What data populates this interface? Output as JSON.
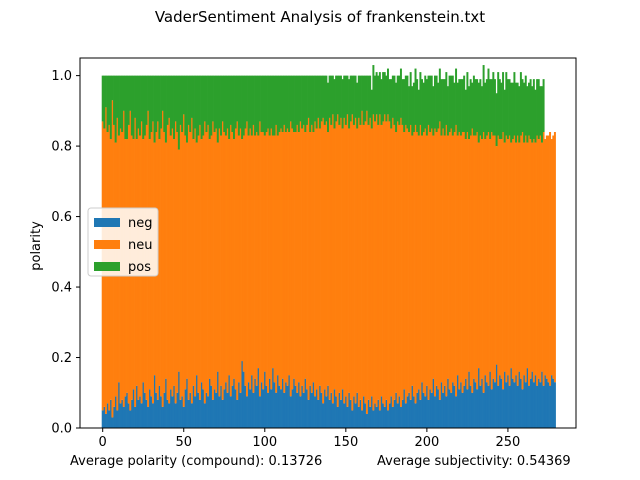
{
  "figure": {
    "title": "VaderSentiment Analysis of frankenstein.txt",
    "footer_left": "Average polarity (compound): 0.13726",
    "footer_right": "Average subjectivity: 0.54369"
  },
  "colors": {
    "neg": "#1f77b4",
    "neu": "#ff7f0e",
    "pos": "#2ca02c"
  },
  "chart_data": {
    "type": "bar",
    "stacked": true,
    "title": "VaderSentiment Analysis of frankenstein.txt",
    "xlabel": "",
    "ylabel": "polarity",
    "xlim": [
      -14,
      292
    ],
    "ylim": [
      0,
      1.05
    ],
    "xticks": [
      0,
      50,
      100,
      150,
      200,
      250
    ],
    "yticks": [
      0.0,
      0.2,
      0.4,
      0.6,
      0.8,
      1.0
    ],
    "legend": {
      "position": "center-left",
      "entries": [
        "neg",
        "neu",
        "pos"
      ]
    },
    "grid": false,
    "n_bars": 279,
    "series": [
      {
        "name": "neg",
        "values": [
          0.05,
          0.06,
          0.04,
          0.07,
          0.05,
          0.08,
          0.03,
          0.06,
          0.09,
          0.05,
          0.13,
          0.07,
          0.08,
          0.06,
          0.09,
          0.1,
          0.07,
          0.05,
          0.08,
          0.11,
          0.06,
          0.12,
          0.08,
          0.09,
          0.07,
          0.13,
          0.1,
          0.08,
          0.06,
          0.11,
          0.09,
          0.07,
          0.15,
          0.1,
          0.08,
          0.12,
          0.09,
          0.06,
          0.1,
          0.14,
          0.08,
          0.07,
          0.11,
          0.09,
          0.12,
          0.07,
          0.1,
          0.16,
          0.08,
          0.09,
          0.06,
          0.11,
          0.14,
          0.08,
          0.1,
          0.07,
          0.12,
          0.09,
          0.15,
          0.1,
          0.08,
          0.13,
          0.11,
          0.07,
          0.1,
          0.09,
          0.14,
          0.12,
          0.08,
          0.11,
          0.1,
          0.16,
          0.09,
          0.12,
          0.08,
          0.11,
          0.13,
          0.1,
          0.15,
          0.09,
          0.12,
          0.14,
          0.11,
          0.08,
          0.13,
          0.1,
          0.19,
          0.16,
          0.12,
          0.09,
          0.13,
          0.11,
          0.15,
          0.1,
          0.14,
          0.12,
          0.17,
          0.09,
          0.13,
          0.11,
          0.16,
          0.12,
          0.1,
          0.14,
          0.11,
          0.17,
          0.13,
          0.1,
          0.15,
          0.12,
          0.11,
          0.14,
          0.1,
          0.13,
          0.12,
          0.15,
          0.09,
          0.11,
          0.14,
          0.12,
          0.1,
          0.13,
          0.09,
          0.12,
          0.1,
          0.14,
          0.11,
          0.08,
          0.12,
          0.1,
          0.13,
          0.09,
          0.11,
          0.08,
          0.12,
          0.1,
          0.07,
          0.11,
          0.09,
          0.12,
          0.08,
          0.1,
          0.07,
          0.11,
          0.09,
          0.06,
          0.1,
          0.08,
          0.11,
          0.07,
          0.09,
          0.06,
          0.1,
          0.08,
          0.05,
          0.09,
          0.07,
          0.1,
          0.06,
          0.08,
          0.05,
          0.09,
          0.07,
          0.04,
          0.08,
          0.06,
          0.09,
          0.05,
          0.07,
          0.06,
          0.08,
          0.05,
          0.09,
          0.07,
          0.06,
          0.08,
          0.05,
          0.07,
          0.09,
          0.06,
          0.08,
          0.1,
          0.07,
          0.09,
          0.06,
          0.08,
          0.11,
          0.07,
          0.09,
          0.1,
          0.08,
          0.12,
          0.09,
          0.07,
          0.1,
          0.11,
          0.08,
          0.13,
          0.1,
          0.09,
          0.12,
          0.08,
          0.11,
          0.1,
          0.14,
          0.09,
          0.12,
          0.11,
          0.08,
          0.13,
          0.1,
          0.12,
          0.09,
          0.14,
          0.11,
          0.1,
          0.13,
          0.12,
          0.09,
          0.15,
          0.11,
          0.13,
          0.1,
          0.12,
          0.14,
          0.11,
          0.16,
          0.12,
          0.1,
          0.14,
          0.13,
          0.11,
          0.17,
          0.12,
          0.14,
          0.1,
          0.15,
          0.13,
          0.12,
          0.16,
          0.11,
          0.14,
          0.13,
          0.18,
          0.12,
          0.15,
          0.14,
          0.11,
          0.16,
          0.13,
          0.15,
          0.12,
          0.17,
          0.14,
          0.13,
          0.15,
          0.12,
          0.16,
          0.14,
          0.11,
          0.15,
          0.13,
          0.17,
          0.12,
          0.14,
          0.16,
          0.13,
          0.15,
          0.12,
          0.14,
          0.13,
          0.16,
          0.12,
          0.15,
          0.14,
          0.13,
          0.12,
          0.15,
          0.14,
          0.13
        ]
      },
      {
        "name": "neu",
        "values": [
          0.82,
          0.79,
          0.87,
          0.77,
          0.81,
          0.74,
          0.9,
          0.8,
          0.72,
          0.83,
          0.7,
          0.78,
          0.76,
          0.84,
          0.73,
          0.72,
          0.79,
          0.85,
          0.75,
          0.71,
          0.82,
          0.7,
          0.77,
          0.74,
          0.8,
          0.69,
          0.73,
          0.78,
          0.84,
          0.71,
          0.75,
          0.8,
          0.66,
          0.74,
          0.79,
          0.7,
          0.76,
          0.84,
          0.74,
          0.67,
          0.78,
          0.81,
          0.72,
          0.76,
          0.7,
          0.8,
          0.74,
          0.63,
          0.78,
          0.75,
          0.83,
          0.72,
          0.67,
          0.78,
          0.74,
          0.81,
          0.7,
          0.76,
          0.66,
          0.73,
          0.78,
          0.69,
          0.72,
          0.8,
          0.74,
          0.77,
          0.68,
          0.71,
          0.79,
          0.73,
          0.75,
          0.65,
          0.76,
          0.71,
          0.79,
          0.73,
          0.7,
          0.75,
          0.67,
          0.77,
          0.72,
          0.68,
          0.74,
          0.79,
          0.7,
          0.75,
          0.63,
          0.67,
          0.73,
          0.78,
          0.7,
          0.74,
          0.68,
          0.76,
          0.69,
          0.72,
          0.66,
          0.78,
          0.71,
          0.73,
          0.67,
          0.72,
          0.75,
          0.69,
          0.74,
          0.66,
          0.7,
          0.76,
          0.68,
          0.72,
          0.74,
          0.7,
          0.76,
          0.71,
          0.73,
          0.69,
          0.78,
          0.74,
          0.7,
          0.72,
          0.76,
          0.71,
          0.78,
          0.73,
          0.76,
          0.7,
          0.75,
          0.8,
          0.72,
          0.76,
          0.71,
          0.78,
          0.74,
          0.8,
          0.73,
          0.77,
          0.81,
          0.75,
          0.78,
          0.72,
          0.8,
          0.76,
          0.82,
          0.74,
          0.78,
          0.83,
          0.76,
          0.8,
          0.74,
          0.81,
          0.77,
          0.83,
          0.75,
          0.79,
          0.84,
          0.77,
          0.81,
          0.75,
          0.82,
          0.78,
          0.85,
          0.77,
          0.8,
          0.86,
          0.78,
          0.82,
          0.76,
          0.84,
          0.8,
          0.83,
          0.78,
          0.84,
          0.77,
          0.8,
          0.83,
          0.79,
          0.84,
          0.8,
          0.76,
          0.82,
          0.78,
          0.74,
          0.8,
          0.77,
          0.82,
          0.78,
          0.73,
          0.79,
          0.76,
          0.74,
          0.78,
          0.71,
          0.75,
          0.79,
          0.74,
          0.72,
          0.78,
          0.7,
          0.74,
          0.76,
          0.71,
          0.78,
          0.73,
          0.75,
          0.69,
          0.76,
          0.72,
          0.74,
          0.79,
          0.7,
          0.75,
          0.71,
          0.77,
          0.69,
          0.73,
          0.75,
          0.7,
          0.72,
          0.77,
          0.68,
          0.73,
          0.7,
          0.74,
          0.72,
          0.68,
          0.73,
          0.66,
          0.71,
          0.75,
          0.69,
          0.7,
          0.73,
          0.64,
          0.71,
          0.68,
          0.74,
          0.67,
          0.7,
          0.72,
          0.66,
          0.73,
          0.69,
          0.7,
          0.62,
          0.71,
          0.67,
          0.68,
          0.73,
          0.65,
          0.7,
          0.67,
          0.71,
          0.64,
          0.68,
          0.7,
          0.66,
          0.71,
          0.65,
          0.69,
          0.73,
          0.66,
          0.7,
          0.64,
          0.71,
          0.68,
          0.65,
          0.69,
          0.66,
          0.71,
          0.68,
          0.7,
          0.65,
          0.72,
          0.67,
          0.69,
          0.7,
          0.72,
          0.67,
          0.69,
          0.71
        ]
      },
      {
        "name": "pos",
        "values": [
          0.13,
          0.15,
          0.09,
          0.16,
          0.14,
          0.18,
          0.07,
          0.14,
          0.19,
          0.12,
          0.17,
          0.15,
          0.16,
          0.1,
          0.18,
          0.18,
          0.14,
          0.1,
          0.17,
          0.18,
          0.12,
          0.18,
          0.15,
          0.17,
          0.13,
          0.18,
          0.17,
          0.14,
          0.1,
          0.18,
          0.16,
          0.13,
          0.19,
          0.16,
          0.13,
          0.18,
          0.15,
          0.1,
          0.16,
          0.19,
          0.14,
          0.12,
          0.17,
          0.15,
          0.18,
          0.13,
          0.16,
          0.21,
          0.14,
          0.16,
          0.11,
          0.17,
          0.19,
          0.14,
          0.16,
          0.12,
          0.18,
          0.15,
          0.19,
          0.17,
          0.14,
          0.18,
          0.17,
          0.13,
          0.16,
          0.14,
          0.18,
          0.17,
          0.13,
          0.16,
          0.15,
          0.19,
          0.15,
          0.17,
          0.13,
          0.16,
          0.17,
          0.15,
          0.18,
          0.14,
          0.16,
          0.18,
          0.15,
          0.13,
          0.17,
          0.15,
          0.18,
          0.17,
          0.15,
          0.13,
          0.17,
          0.15,
          0.17,
          0.14,
          0.17,
          0.16,
          0.17,
          0.13,
          0.16,
          0.16,
          0.17,
          0.16,
          0.15,
          0.17,
          0.15,
          0.17,
          0.17,
          0.14,
          0.17,
          0.16,
          0.15,
          0.16,
          0.14,
          0.16,
          0.15,
          0.16,
          0.13,
          0.15,
          0.16,
          0.16,
          0.14,
          0.16,
          0.13,
          0.15,
          0.14,
          0.16,
          0.14,
          0.12,
          0.16,
          0.14,
          0.16,
          0.13,
          0.15,
          0.12,
          0.15,
          0.13,
          0.12,
          0.14,
          0.13,
          0.14,
          0.12,
          0.14,
          0.11,
          0.14,
          0.13,
          0.11,
          0.14,
          0.12,
          0.14,
          0.12,
          0.14,
          0.11,
          0.14,
          0.13,
          0.11,
          0.14,
          0.12,
          0.13,
          0.12,
          0.14,
          0.1,
          0.14,
          0.13,
          0.1,
          0.14,
          0.12,
          0.11,
          0.14,
          0.13,
          0.12,
          0.14,
          0.12,
          0.13,
          0.14,
          0.12,
          0.13,
          0.13,
          0.12,
          0.14,
          0.12,
          0.14,
          0.14,
          0.13,
          0.14,
          0.14,
          0.13,
          0.15,
          0.14,
          0.15,
          0.13,
          0.15,
          0.14,
          0.14,
          0.16,
          0.15,
          0.13,
          0.15,
          0.16,
          0.14,
          0.15,
          0.16,
          0.14,
          0.16,
          0.15,
          0.14,
          0.15,
          0.16,
          0.13,
          0.15,
          0.16,
          0.14,
          0.16,
          0.15,
          0.14,
          0.16,
          0.15,
          0.17,
          0.14,
          0.16,
          0.15,
          0.15,
          0.16,
          0.15,
          0.16,
          0.14,
          0.17,
          0.15,
          0.16,
          0.13,
          0.17,
          0.16,
          0.15,
          0.17,
          0.16,
          0.15,
          0.19,
          0.16,
          0.16,
          0.18,
          0.17,
          0.15,
          0.18,
          0.16,
          0.15,
          0.18,
          0.17,
          0.16,
          0.17,
          0.15,
          0.18,
          0.17,
          0.16,
          0.17,
          0.16,
          0.18,
          0.17,
          0.15,
          0.16,
          0.18,
          0.15,
          0.17,
          0.17,
          0.16,
          0.15,
          0.17,
          0.16,
          0.17,
          0.15,
          0.16,
          0.17,
          0.14,
          0.16,
          0.15
        ]
      }
    ]
  }
}
